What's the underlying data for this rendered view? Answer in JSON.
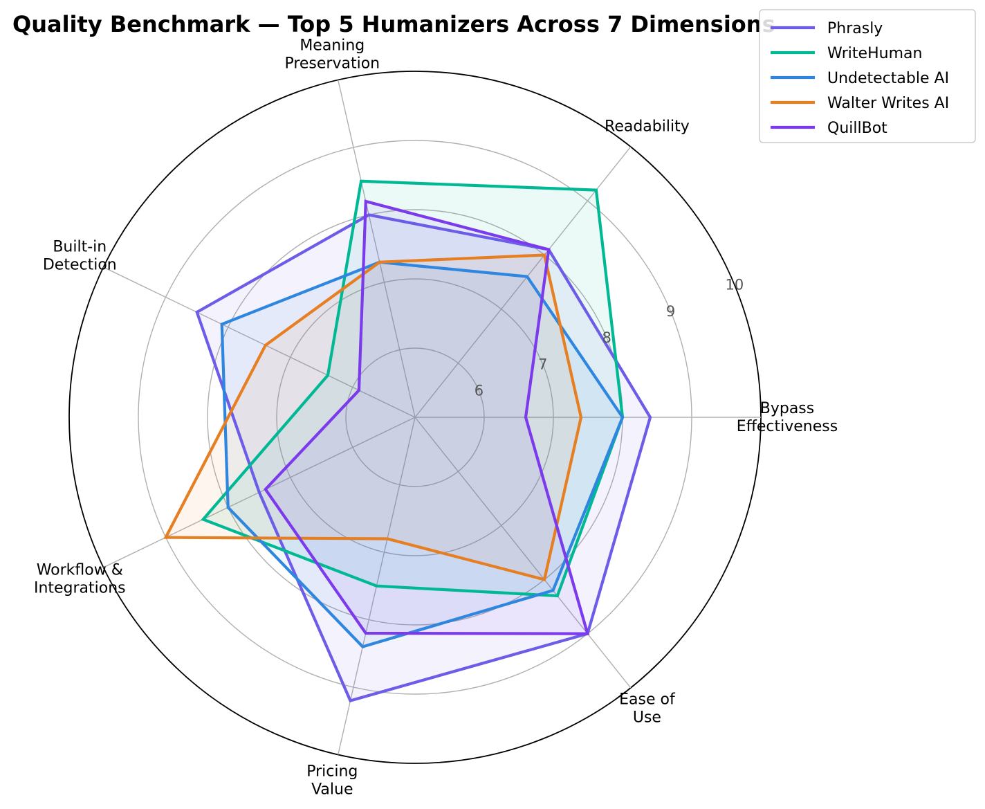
{
  "chart_data": {
    "type": "radar",
    "title": "Quality Benchmark — Top 5 Humanizers Across 7 Dimensions",
    "axes": [
      [
        "Bypass",
        "Effectiveness"
      ],
      [
        "Readability"
      ],
      [
        "Meaning",
        "Preservation"
      ],
      [
        "Built-in",
        "Detection"
      ],
      [
        "Workflow &",
        "Integrations"
      ],
      [
        "Pricing",
        "Value"
      ],
      [
        "Ease of",
        "Use"
      ]
    ],
    "r_ticks": [
      "6",
      "7",
      "8",
      "9",
      "10"
    ],
    "rlim": [
      5,
      10
    ],
    "grid": true,
    "legend_position": "top-right",
    "series": [
      {
        "name": "Phrasly",
        "color": "#6c5ce7",
        "values": [
          8.4,
          8.1,
          8.0,
          8.5,
          7.5,
          9.2,
          9.0
        ]
      },
      {
        "name": "WriteHuman",
        "color": "#00b894",
        "values": [
          8.0,
          9.2,
          8.5,
          6.4,
          8.4,
          7.5,
          8.3
        ]
      },
      {
        "name": "Undetectable AI",
        "color": "#2e86de",
        "values": [
          8.0,
          7.6,
          7.3,
          8.1,
          8.0,
          8.4,
          8.2
        ]
      },
      {
        "name": "Walter Writes AI",
        "color": "#e67e22",
        "values": [
          7.4,
          8.0,
          7.3,
          7.4,
          9.0,
          6.8,
          8.0
        ]
      },
      {
        "name": "QuillBot",
        "color": "#7c3aed",
        "values": [
          6.6,
          8.1,
          8.2,
          5.9,
          7.4,
          8.2,
          9.0
        ]
      }
    ]
  }
}
